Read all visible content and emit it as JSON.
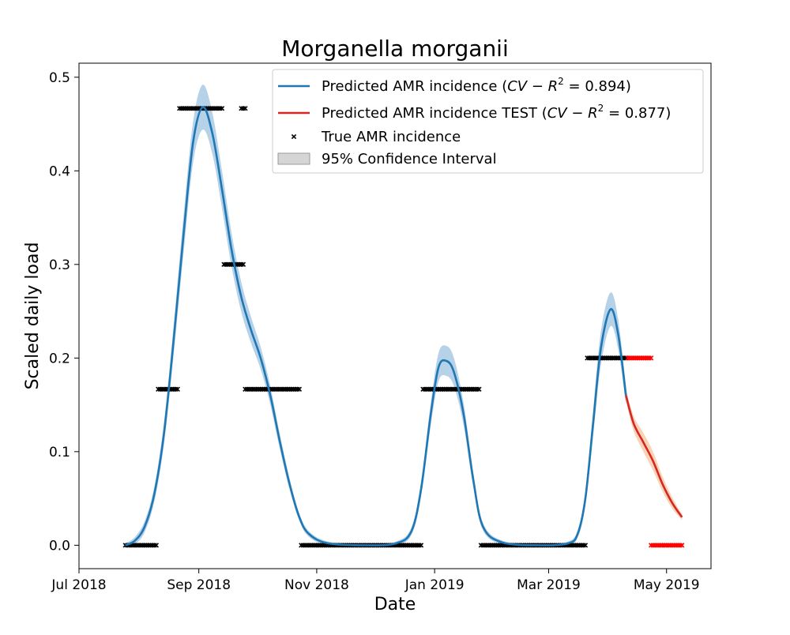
{
  "chart_data": {
    "type": "line",
    "title": "Morganella morganii",
    "xlabel": "Date",
    "ylabel": "Scaled daily load",
    "xlim": [
      "2018-07-01",
      "2019-05-24"
    ],
    "ylim": [
      -0.025,
      0.515
    ],
    "x_ticks": [
      {
        "date": "2018-07-01",
        "label": "Jul 2018"
      },
      {
        "date": "2018-09-01",
        "label": "Sep 2018"
      },
      {
        "date": "2018-11-01",
        "label": "Nov 2018"
      },
      {
        "date": "2019-01-01",
        "label": "Jan 2019"
      },
      {
        "date": "2019-03-01",
        "label": "Mar 2019"
      },
      {
        "date": "2019-05-01",
        "label": "May 2019"
      }
    ],
    "y_ticks": [
      {
        "value": 0.0,
        "label": "0.0"
      },
      {
        "value": 0.1,
        "label": "0.1"
      },
      {
        "value": 0.2,
        "label": "0.2"
      },
      {
        "value": 0.3,
        "label": "0.3"
      },
      {
        "value": 0.4,
        "label": "0.4"
      },
      {
        "value": 0.5,
        "label": "0.5"
      }
    ],
    "grid": false,
    "legend_position": "top-right",
    "legend": [
      {
        "kind": "line",
        "color": "#1f77b4",
        "text": "Predicted AMR incidence (",
        "math": "CV − R",
        "sup": "2",
        "tail": " = 0.894)"
      },
      {
        "kind": "line",
        "color": "#d62728",
        "text": "Predicted AMR incidence TEST (",
        "math": "CV − R",
        "sup": "2",
        "tail": " = 0.877)"
      },
      {
        "kind": "marker",
        "color": "#000000",
        "text": "True AMR incidence",
        "math": "",
        "sup": "",
        "tail": ""
      },
      {
        "kind": "band",
        "color": "#bfbfbf",
        "text": "95% Confidence Interval",
        "math": "",
        "sup": "",
        "tail": ""
      }
    ],
    "series": [
      {
        "name": "Predicted AMR incidence",
        "color": "#1f77b4",
        "band_color": "#9ec3e0",
        "points": [
          [
            "2018-07-25",
            0.0
          ],
          [
            "2018-07-30",
            0.005
          ],
          [
            "2018-08-04",
            0.02
          ],
          [
            "2018-08-09",
            0.055
          ],
          [
            "2018-08-14",
            0.12
          ],
          [
            "2018-08-19",
            0.22
          ],
          [
            "2018-08-24",
            0.33
          ],
          [
            "2018-08-29",
            0.43
          ],
          [
            "2018-09-03",
            0.468
          ],
          [
            "2018-09-08",
            0.44
          ],
          [
            "2018-09-13",
            0.38
          ],
          [
            "2018-09-18",
            0.315
          ],
          [
            "2018-09-23",
            0.265
          ],
          [
            "2018-09-28",
            0.23
          ],
          [
            "2018-10-03",
            0.2
          ],
          [
            "2018-10-08",
            0.16
          ],
          [
            "2018-10-13",
            0.11
          ],
          [
            "2018-10-18",
            0.065
          ],
          [
            "2018-10-23",
            0.03
          ],
          [
            "2018-10-28",
            0.012
          ],
          [
            "2018-11-07",
            0.002
          ],
          [
            "2018-11-27",
            0.0
          ],
          [
            "2018-12-12",
            0.002
          ],
          [
            "2018-12-20",
            0.015
          ],
          [
            "2018-12-25",
            0.06
          ],
          [
            "2018-12-30",
            0.14
          ],
          [
            "2019-01-03",
            0.19
          ],
          [
            "2019-01-07",
            0.197
          ],
          [
            "2019-01-11",
            0.185
          ],
          [
            "2019-01-16",
            0.14
          ],
          [
            "2019-01-21",
            0.07
          ],
          [
            "2019-01-26",
            0.02
          ],
          [
            "2019-02-05",
            0.003
          ],
          [
            "2019-02-25",
            0.0
          ],
          [
            "2019-03-11",
            0.002
          ],
          [
            "2019-03-16",
            0.012
          ],
          [
            "2019-03-20",
            0.05
          ],
          [
            "2019-03-24",
            0.13
          ],
          [
            "2019-03-28",
            0.21
          ],
          [
            "2019-04-02",
            0.252
          ],
          [
            "2019-04-06",
            0.225
          ],
          [
            "2019-04-10",
            0.16
          ]
        ],
        "ci_halfwidth": [
          0.002,
          0.004,
          0.006,
          0.008,
          0.012,
          0.016,
          0.02,
          0.022,
          0.024,
          0.022,
          0.02,
          0.018,
          0.016,
          0.014,
          0.012,
          0.01,
          0.008,
          0.006,
          0.004,
          0.003,
          0.002,
          0.001,
          0.002,
          0.004,
          0.008,
          0.012,
          0.015,
          0.016,
          0.015,
          0.012,
          0.008,
          0.004,
          0.002,
          0.001,
          0.002,
          0.004,
          0.008,
          0.014,
          0.018,
          0.018,
          0.016,
          0.01
        ]
      },
      {
        "name": "Predicted AMR incidence TEST",
        "color": "#d62728",
        "band_color": "#f6c69a",
        "points": [
          [
            "2019-04-10",
            0.16
          ],
          [
            "2019-04-14",
            0.13
          ],
          [
            "2019-04-19",
            0.11
          ],
          [
            "2019-04-24",
            0.09
          ],
          [
            "2019-04-29",
            0.065
          ],
          [
            "2019-05-04",
            0.045
          ],
          [
            "2019-05-09",
            0.03
          ]
        ],
        "ci_halfwidth": [
          0.006,
          0.008,
          0.01,
          0.01,
          0.008,
          0.006,
          0.003
        ]
      }
    ],
    "true_incidence": [
      {
        "color": "#000000",
        "value": 0.0,
        "from": "2018-07-25",
        "to": "2018-08-10"
      },
      {
        "color": "#000000",
        "value": 0.1667,
        "from": "2018-08-11",
        "to": "2018-08-21"
      },
      {
        "color": "#000000",
        "value": 0.4667,
        "from": "2018-08-22",
        "to": "2018-09-13"
      },
      {
        "color": "#000000",
        "value": 0.4667,
        "from": "2018-09-23",
        "to": "2018-09-25"
      },
      {
        "color": "#000000",
        "value": 0.3,
        "from": "2018-09-14",
        "to": "2018-09-24"
      },
      {
        "color": "#000000",
        "value": 0.1667,
        "from": "2018-09-25",
        "to": "2018-10-23"
      },
      {
        "color": "#000000",
        "value": 0.0,
        "from": "2018-10-24",
        "to": "2018-12-25"
      },
      {
        "color": "#000000",
        "value": 0.1667,
        "from": "2018-12-26",
        "to": "2019-01-24"
      },
      {
        "color": "#000000",
        "value": 0.0,
        "from": "2019-01-25",
        "to": "2019-03-20"
      },
      {
        "color": "#000000",
        "value": 0.2,
        "from": "2019-03-21",
        "to": "2019-04-10"
      },
      {
        "color": "#ff0000",
        "value": 0.2,
        "from": "2019-04-11",
        "to": "2019-04-23"
      },
      {
        "color": "#ff0000",
        "value": 0.0,
        "from": "2019-04-23",
        "to": "2019-05-09"
      }
    ]
  }
}
